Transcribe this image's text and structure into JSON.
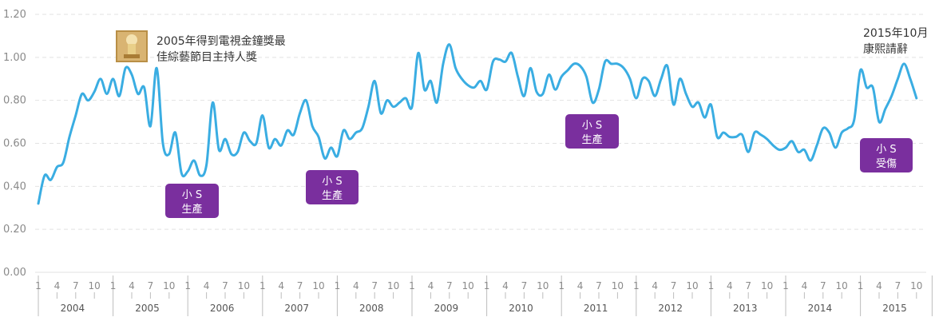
{
  "colors": {
    "line": "#3aade2",
    "badge": "#7a2f9e",
    "grid": "#e2e2e2",
    "axis": "#bdbdbd"
  },
  "chart_data": {
    "type": "line",
    "ylim": [
      0,
      1.2
    ],
    "yticks": [
      "0.00",
      "0.20",
      "0.40",
      "0.60",
      "0.80",
      "1.00",
      "1.20"
    ],
    "grid": "horizontal-dashed",
    "month_ticks": [
      "1",
      "4",
      "7",
      "10"
    ],
    "years": [
      "2004",
      "2005",
      "2006",
      "2007",
      "2008",
      "2009",
      "2010",
      "2011",
      "2012",
      "2013",
      "2014",
      "2015"
    ],
    "x_start": "2004-01",
    "series": [
      {
        "values": [
          0.32,
          0.45,
          0.43,
          0.49,
          0.51,
          0.63,
          0.73,
          0.83,
          0.8,
          0.84,
          0.9,
          0.83,
          0.9,
          0.82,
          0.95,
          0.92,
          0.83,
          0.86,
          0.68,
          0.95,
          0.6,
          0.55,
          0.65,
          0.46,
          0.47,
          0.52,
          0.45,
          0.5,
          0.79,
          0.57,
          0.62,
          0.55,
          0.56,
          0.65,
          0.61,
          0.6,
          0.73,
          0.58,
          0.62,
          0.59,
          0.66,
          0.64,
          0.74,
          0.8,
          0.68,
          0.63,
          0.53,
          0.58,
          0.54,
          0.66,
          0.62,
          0.65,
          0.67,
          0.77,
          0.89,
          0.74,
          0.8,
          0.77,
          0.79,
          0.81,
          0.77,
          1.02,
          0.85,
          0.89,
          0.79,
          0.97,
          1.06,
          0.95,
          0.9,
          0.87,
          0.86,
          0.89,
          0.85,
          0.98,
          0.99,
          0.98,
          1.02,
          0.91,
          0.82,
          0.95,
          0.84,
          0.83,
          0.92,
          0.85,
          0.91,
          0.94,
          0.97,
          0.96,
          0.91,
          0.79,
          0.85,
          0.98,
          0.97,
          0.97,
          0.95,
          0.9,
          0.81,
          0.9,
          0.89,
          0.82,
          0.9,
          0.96,
          0.78,
          0.9,
          0.83,
          0.77,
          0.79,
          0.72,
          0.78,
          0.63,
          0.65,
          0.63,
          0.63,
          0.64,
          0.56,
          0.65,
          0.64,
          0.62,
          0.59,
          0.57,
          0.58,
          0.61,
          0.56,
          0.57,
          0.52,
          0.59,
          0.67,
          0.65,
          0.58,
          0.65,
          0.67,
          0.71,
          0.94,
          0.86,
          0.86,
          0.7,
          0.76,
          0.82,
          0.9,
          0.97,
          0.9,
          0.81
        ]
      }
    ],
    "annotations": [
      {
        "type": "image-note",
        "lines": [
          "2005年得到電視金鐘獎最",
          "佳綜藝節目主持人獎"
        ]
      },
      {
        "type": "text-note",
        "lines": [
          "2015年10月",
          "康熙請辭"
        ]
      },
      {
        "type": "badge",
        "month": "2005-10",
        "lines": [
          "小 S",
          "生產"
        ]
      },
      {
        "type": "badge",
        "month": "2007-09",
        "lines": [
          "小 S",
          "生產"
        ]
      },
      {
        "type": "badge",
        "month": "2011-03",
        "lines": [
          "小 S",
          "生產"
        ]
      },
      {
        "type": "badge",
        "month": "2015-03",
        "lines": [
          "小 S",
          "受傷"
        ]
      }
    ]
  }
}
